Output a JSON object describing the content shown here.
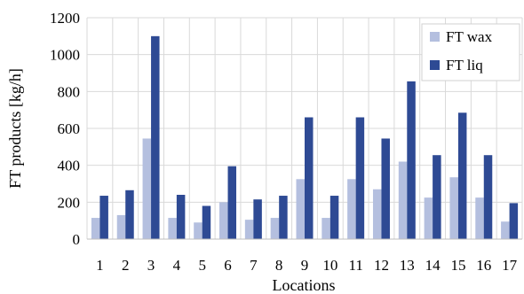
{
  "chart_data": {
    "type": "bar",
    "categories": [
      "1",
      "2",
      "3",
      "4",
      "5",
      "6",
      "7",
      "8",
      "9",
      "10",
      "11",
      "12",
      "13",
      "14",
      "15",
      "16",
      "17"
    ],
    "series": [
      {
        "name": "FT wax",
        "color": "#b4bfdf",
        "values": [
          115,
          130,
          545,
          115,
          90,
          200,
          105,
          115,
          325,
          115,
          325,
          270,
          420,
          225,
          335,
          225,
          95
        ]
      },
      {
        "name": "FT liq",
        "color": "#2e4a94",
        "values": [
          235,
          265,
          1100,
          240,
          180,
          395,
          215,
          235,
          660,
          235,
          660,
          545,
          855,
          455,
          685,
          455,
          195
        ]
      }
    ],
    "xlabel": "Locations",
    "ylabel": "FT products [kg/h]",
    "ylim": [
      0,
      1200
    ],
    "yticks": [
      "0",
      "200",
      "400",
      "600",
      "800",
      "1000",
      "1200"
    ],
    "grid": true,
    "legend": "top-right"
  }
}
